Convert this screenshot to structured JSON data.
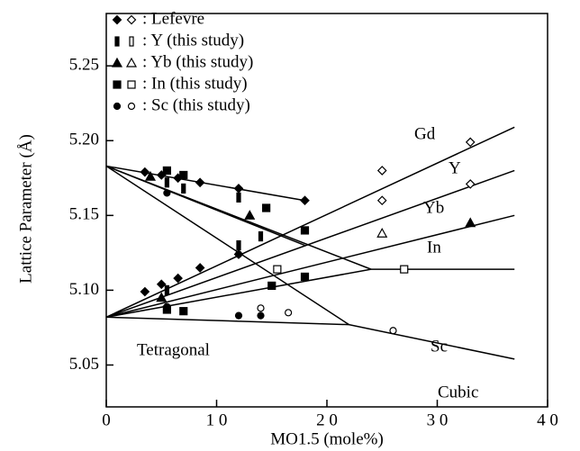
{
  "chart_data": {
    "type": "scatter",
    "color": "#000000",
    "xlabel": "MO1.5 (mole%)",
    "ylabel": "Lattice Parameter (Å)",
    "xlim": [
      0,
      40
    ],
    "ylim": [
      5.022,
      5.285
    ],
    "xticks": [
      0,
      {
        "value": 10,
        "label": "1 0"
      },
      {
        "value": 20,
        "label": "2 0"
      },
      {
        "value": 30,
        "label": "3 0"
      },
      {
        "value": 40,
        "label": "4 0"
      }
    ],
    "yticks": [
      5.05,
      {
        "value": 5.1,
        "label": "5.10"
      },
      5.15,
      {
        "value": 5.2,
        "label": "5.20"
      },
      5.25
    ],
    "series": [
      {
        "name": ": Lefevre",
        "marker": "diamond",
        "x": [
          3.5,
          5,
          6.5,
          8.5,
          12,
          3.5,
          5,
          6.5,
          8.5,
          12,
          18
        ],
        "values": [
          5.099,
          5.104,
          5.108,
          5.115,
          5.124,
          5.179,
          5.177,
          5.175,
          5.172,
          5.168,
          5.16
        ],
        "open_x": [
          25,
          25,
          33,
          33
        ],
        "open_values": [
          5.18,
          5.16,
          5.199,
          5.171
        ]
      },
      {
        "name": ": Y (this study)",
        "marker": "bar",
        "x": [
          5.5,
          7,
          12,
          5.5,
          12,
          14
        ],
        "values": [
          5.172,
          5.168,
          5.162,
          5.1,
          5.13,
          5.136
        ],
        "open_x": [],
        "open_values": []
      },
      {
        "name": ": Yb (this study)",
        "marker": "triangle",
        "x": [
          5,
          13,
          33,
          4
        ],
        "values": [
          5.095,
          5.15,
          5.145,
          5.176
        ],
        "open_x": [
          25
        ],
        "open_values": [
          5.138
        ]
      },
      {
        "name": ": In (this study)",
        "marker": "square",
        "x": [
          5.5,
          7,
          14.5,
          18,
          5.5,
          7,
          15,
          18
        ],
        "values": [
          5.18,
          5.177,
          5.155,
          5.14,
          5.087,
          5.086,
          5.103,
          5.109
        ],
        "open_x": [
          15.5,
          27
        ],
        "open_values": [
          5.114,
          5.114
        ]
      },
      {
        "name": ": Sc (this study)",
        "marker": "circle",
        "x": [
          5.5,
          5.5,
          12,
          14,
          12
        ],
        "values": [
          5.165,
          5.089,
          5.083,
          5.083,
          5.124
        ],
        "open_x": [
          14,
          16.5,
          26
        ],
        "open_values": [
          5.088,
          5.085,
          5.073
        ]
      }
    ],
    "lines": [
      {
        "x": [
          0,
          37
        ],
        "values": [
          5.082,
          5.209
        ]
      },
      {
        "x": [
          0,
          37
        ],
        "values": [
          5.082,
          5.18
        ]
      },
      {
        "x": [
          0,
          37
        ],
        "values": [
          5.082,
          5.15
        ]
      },
      {
        "x": [
          0,
          24,
          37
        ],
        "values": [
          5.082,
          5.114,
          5.114
        ]
      },
      {
        "x": [
          0,
          22,
          37
        ],
        "values": [
          5.082,
          5.077,
          5.054
        ]
      },
      {
        "x": [
          0,
          18
        ],
        "values": [
          5.183,
          5.16
        ]
      },
      {
        "x": [
          0,
          18
        ],
        "values": [
          5.183,
          5.13
        ]
      },
      {
        "x": [
          0,
          24
        ],
        "values": [
          5.183,
          5.114
        ]
      },
      {
        "x": [
          0,
          22
        ],
        "values": [
          5.183,
          5.077
        ]
      }
    ],
    "annotations": [
      "Gd",
      "Y",
      "Yb",
      "In",
      "Sc",
      "Tetragonal",
      "Cubic"
    ]
  }
}
